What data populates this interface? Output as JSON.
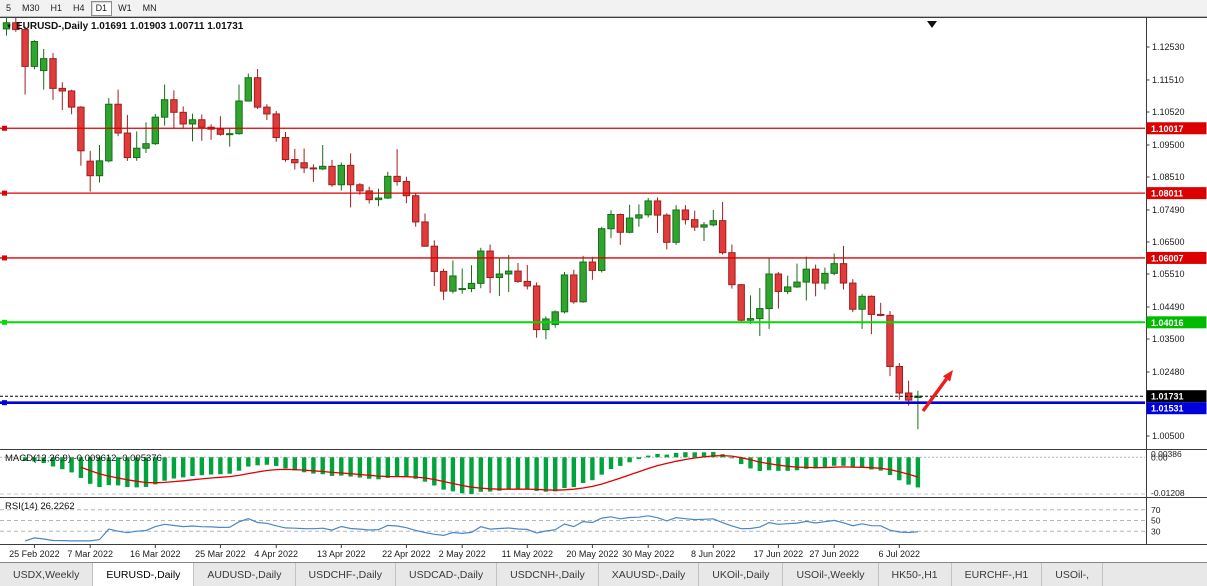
{
  "toolbar": {
    "timeframes": [
      {
        "label": "5",
        "active": false
      },
      {
        "label": "M30",
        "active": false
      },
      {
        "label": "H1",
        "active": false
      },
      {
        "label": "H4",
        "active": false
      },
      {
        "label": "D1",
        "active": true
      },
      {
        "label": "W1",
        "active": false
      },
      {
        "label": "MN",
        "active": false
      }
    ]
  },
  "header": {
    "text": "EURUSD-,Daily 1.01691 1.01903 1.00711 1.01731",
    "symbol": "EURUSD-,Daily",
    "open": "1.01691",
    "high": "1.01903",
    "low": "1.00711",
    "close": "1.01731"
  },
  "chart_data": {
    "type": "candlestick",
    "title": "EURUSD-,Daily",
    "bull_color": "#2fa52f",
    "bull_border": "#176e17",
    "bear_color": "#e23b3b",
    "bear_border": "#9e1f1f",
    "y_range": [
      1.0009,
      1.1346
    ],
    "candles": [
      [
        1.1309,
        1.1346,
        1.1288,
        1.1328
      ],
      [
        1.1328,
        1.1343,
        1.13,
        1.1307
      ],
      [
        1.1307,
        1.1316,
        1.1106,
        1.1193
      ],
      [
        1.1193,
        1.1274,
        1.1184,
        1.127
      ],
      [
        1.118,
        1.1247,
        1.1121,
        1.1217
      ],
      [
        1.1217,
        1.1234,
        1.109,
        1.1125
      ],
      [
        1.1125,
        1.1144,
        1.1058,
        1.1117
      ],
      [
        1.1117,
        1.1121,
        1.1045,
        1.1067
      ],
      [
        1.1067,
        1.107,
        1.0886,
        1.0932
      ],
      [
        1.09,
        1.0932,
        1.0806,
        1.0855
      ],
      [
        1.0855,
        1.095,
        1.0834,
        1.0901
      ],
      [
        1.0901,
        1.1095,
        1.0896,
        1.1076
      ],
      [
        1.1076,
        1.1121,
        1.0977,
        1.0987
      ],
      [
        1.0987,
        1.1043,
        1.0901,
        1.0911
      ],
      [
        1.0911,
        1.0992,
        1.0901,
        1.094
      ],
      [
        1.094,
        1.102,
        1.0925,
        1.0954
      ],
      [
        1.0954,
        1.1046,
        1.095,
        1.1036
      ],
      [
        1.1036,
        1.1137,
        1.101,
        1.109
      ],
      [
        1.109,
        1.1119,
        1.1003,
        1.1051
      ],
      [
        1.1051,
        1.1069,
        1.1,
        1.1015
      ],
      [
        1.1015,
        1.1047,
        1.0961,
        1.1028
      ],
      [
        1.1028,
        1.1044,
        1.0963,
        1.1005
      ],
      [
        1.1005,
        1.1014,
        1.0966,
        1.0999
      ],
      [
        1.0999,
        1.1039,
        1.0979,
        1.0983
      ],
      [
        1.0983,
        1.1,
        1.0945,
        1.0985
      ],
      [
        1.0985,
        1.1137,
        1.0982,
        1.1086
      ],
      [
        1.1086,
        1.1171,
        1.1084,
        1.1158
      ],
      [
        1.1158,
        1.1185,
        1.1061,
        1.1067
      ],
      [
        1.1067,
        1.1076,
        1.1027,
        1.1046
      ],
      [
        1.1046,
        1.1055,
        1.096,
        1.0973
      ],
      [
        1.0973,
        1.099,
        1.0898,
        1.0905
      ],
      [
        1.0905,
        1.0938,
        1.0874,
        1.0895
      ],
      [
        1.0895,
        1.0939,
        1.0863,
        1.0879
      ],
      [
        1.0879,
        1.089,
        1.0836,
        1.0876
      ],
      [
        1.0876,
        1.095,
        1.0872,
        1.0884
      ],
      [
        1.0884,
        1.0904,
        1.0821,
        1.0827
      ],
      [
        1.0827,
        1.0896,
        1.0809,
        1.0887
      ],
      [
        1.0887,
        1.0924,
        1.0757,
        1.0827
      ],
      [
        1.0827,
        1.0832,
        1.0796,
        1.0808
      ],
      [
        1.0808,
        1.0821,
        1.0769,
        1.0781
      ],
      [
        1.0781,
        1.0815,
        1.0761,
        1.0786
      ],
      [
        1.0786,
        1.0867,
        1.0783,
        1.0853
      ],
      [
        1.0853,
        1.0937,
        1.0824,
        1.0837
      ],
      [
        1.0837,
        1.0852,
        1.077,
        1.0793
      ],
      [
        1.0793,
        1.08,
        1.0697,
        1.0712
      ],
      [
        1.0712,
        1.0738,
        1.0635,
        1.0637
      ],
      [
        1.0637,
        1.0655,
        1.0514,
        1.0559
      ],
      [
        1.0559,
        1.0567,
        1.0471,
        1.0498
      ],
      [
        1.0498,
        1.0593,
        1.0491,
        1.0545
      ],
      [
        1.0505,
        1.0568,
        1.049,
        1.0506
      ],
      [
        1.0506,
        1.0578,
        1.0495,
        1.0522
      ],
      [
        1.0522,
        1.0632,
        1.0507,
        1.0622
      ],
      [
        1.0622,
        1.0642,
        1.0492,
        1.054
      ],
      [
        1.054,
        1.0599,
        1.0483,
        1.0551
      ],
      [
        1.0551,
        1.061,
        1.0495,
        1.056
      ],
      [
        1.056,
        1.0585,
        1.0524,
        1.0528
      ],
      [
        1.0528,
        1.0579,
        1.0503,
        1.0514
      ],
      [
        1.0514,
        1.0525,
        1.0354,
        1.0379
      ],
      [
        1.0379,
        1.042,
        1.0349,
        1.0412
      ],
      [
        1.0395,
        1.0438,
        1.0385,
        1.0434
      ],
      [
        1.0434,
        1.0557,
        1.0429,
        1.0548
      ],
      [
        1.0548,
        1.0564,
        1.0459,
        1.0465
      ],
      [
        1.0465,
        1.0607,
        1.0462,
        1.0588
      ],
      [
        1.0588,
        1.0604,
        1.0533,
        1.0562
      ],
      [
        1.0562,
        1.0697,
        1.0556,
        1.0691
      ],
      [
        1.0691,
        1.0748,
        1.0662,
        1.0735
      ],
      [
        1.0735,
        1.0738,
        1.0641,
        1.068
      ],
      [
        1.068,
        1.0765,
        1.0677,
        1.0724
      ],
      [
        1.0724,
        1.0766,
        1.0697,
        1.0734
      ],
      [
        1.0734,
        1.0786,
        1.0726,
        1.0777
      ],
      [
        1.0777,
        1.0787,
        1.0678,
        1.0733
      ],
      [
        1.0733,
        1.0739,
        1.0627,
        1.0649
      ],
      [
        1.0649,
        1.0764,
        1.0641,
        1.0749
      ],
      [
        1.0749,
        1.0764,
        1.0704,
        1.0719
      ],
      [
        1.0719,
        1.0747,
        1.0684,
        1.0696
      ],
      [
        1.0696,
        1.0712,
        1.0653,
        1.0703
      ],
      [
        1.0703,
        1.0749,
        1.0698,
        1.0716
      ],
      [
        1.0716,
        1.0774,
        1.0611,
        1.0617
      ],
      [
        1.0617,
        1.0642,
        1.0506,
        1.0518
      ],
      [
        1.0518,
        1.052,
        1.0399,
        1.0408
      ],
      [
        1.0408,
        1.0485,
        1.0397,
        1.0413
      ],
      [
        1.0413,
        1.0508,
        1.0359,
        1.0444
      ],
      [
        1.0444,
        1.0601,
        1.0381,
        1.0551
      ],
      [
        1.0551,
        1.0557,
        1.0444,
        1.0497
      ],
      [
        1.0497,
        1.0546,
        1.0489,
        1.0511
      ],
      [
        1.0511,
        1.0583,
        1.0508,
        1.0526
      ],
      [
        1.0526,
        1.0605,
        1.0469,
        1.0566
      ],
      [
        1.0566,
        1.058,
        1.0482,
        1.0523
      ],
      [
        1.0523,
        1.0571,
        1.0503,
        1.0553
      ],
      [
        1.0553,
        1.0614,
        1.0547,
        1.0583
      ],
      [
        1.0583,
        1.0638,
        1.0503,
        1.0523
      ],
      [
        1.0523,
        1.0535,
        1.0433,
        1.0442
      ],
      [
        1.0442,
        1.0489,
        1.0381,
        1.0482
      ],
      [
        1.0482,
        1.0485,
        1.0365,
        1.0426
      ],
      [
        1.0426,
        1.0462,
        1.042,
        1.0423
      ],
      [
        1.0423,
        1.0436,
        1.0235,
        1.0265
      ],
      [
        1.0265,
        1.0276,
        1.0162,
        1.0183
      ],
      [
        1.0183,
        1.0221,
        1.0144,
        1.0161
      ],
      [
        1.01691,
        1.01903,
        1.00711,
        1.01731
      ]
    ],
    "x_tick_labels": [
      {
        "index": 3,
        "text": "25 Feb 2022"
      },
      {
        "index": 9,
        "text": "7 Mar 2022"
      },
      {
        "index": 16,
        "text": "16 Mar 2022"
      },
      {
        "index": 23,
        "text": "25 Mar 2022"
      },
      {
        "index": 29,
        "text": "4 Apr 2022"
      },
      {
        "index": 36,
        "text": "13 Apr 2022"
      },
      {
        "index": 43,
        "text": "22 Apr 2022"
      },
      {
        "index": 49,
        "text": "2 May 2022"
      },
      {
        "index": 56,
        "text": "11 May 2022"
      },
      {
        "index": 63,
        "text": "20 May 2022"
      },
      {
        "index": 69,
        "text": "30 May 2022"
      },
      {
        "index": 76,
        "text": "8 Jun 2022"
      },
      {
        "index": 83,
        "text": "17 Jun 2022"
      },
      {
        "index": 89,
        "text": "27 Jun 2022"
      },
      {
        "index": 96,
        "text": "6 Jul 2022"
      }
    ],
    "y_ticks": [
      "1.12530",
      "1.11510",
      "1.10520",
      "1.09500",
      "1.08510",
      "1.07490",
      "1.06500",
      "1.05510",
      "1.04490",
      "1.03500",
      "1.02480",
      "1.00500"
    ],
    "horizontal_lines": [
      {
        "label": "1.10017",
        "price": 1.10017,
        "color": "#dd0000",
        "width": 1.3
      },
      {
        "label": "1.08011",
        "price": 1.08011,
        "color": "#dd0000",
        "width": 1.3
      },
      {
        "label": "1.06007",
        "price": 1.06007,
        "color": "#dd0000",
        "width": 1.3
      },
      {
        "label": "1.04016",
        "price": 1.04016,
        "color": "#00dd00",
        "width": 2
      },
      {
        "label": "1.01531",
        "price": 1.01531,
        "color": "#0000dd",
        "width": 2.6
      }
    ],
    "bid_line": {
      "label": "1.01731",
      "price": 1.01731,
      "color": "#000000"
    },
    "indicators": {
      "macd": {
        "label": "MACD(12,26,9) -0.009612 -0.005376",
        "fast": 12,
        "slow": 26,
        "signal": 9,
        "main_value": "-0.009612",
        "signal_value": "-0.005376",
        "axis_labels": {
          "max": "0.00386",
          "zero": "0.00",
          "min": "-0.01208"
        },
        "hist_color": "#00a33c",
        "signal_color": "#e00000"
      },
      "rsi": {
        "label": "RSI(14) 26.2262",
        "period": 14,
        "value": "26.2262",
        "levels": [
          {
            "value": 70,
            "label": "70"
          },
          {
            "value": 50,
            "label": "50"
          },
          {
            "value": 30,
            "label": "30"
          }
        ],
        "line_color": "#4a86c8"
      }
    },
    "annotation_arrow": {
      "color": "#ee1c1c"
    }
  },
  "tabs": {
    "items": [
      {
        "label": "USDX,Weekly",
        "active": false
      },
      {
        "label": "EURUSD-,Daily",
        "active": true
      },
      {
        "label": "AUDUSD-,Daily",
        "active": false
      },
      {
        "label": "USDCHF-,Daily",
        "active": false
      },
      {
        "label": "USDCAD-,Daily",
        "active": false
      },
      {
        "label": "USDCNH-,Daily",
        "active": false
      },
      {
        "label": "XAUUSD-,Daily",
        "active": false
      },
      {
        "label": "UKOil-,Daily",
        "active": false
      },
      {
        "label": "USOil-,Weekly",
        "active": false
      },
      {
        "label": "HK50-,H1",
        "active": false
      },
      {
        "label": "EURCHF-,H1",
        "active": false
      },
      {
        "label": "USOil-,",
        "active": false
      }
    ]
  }
}
